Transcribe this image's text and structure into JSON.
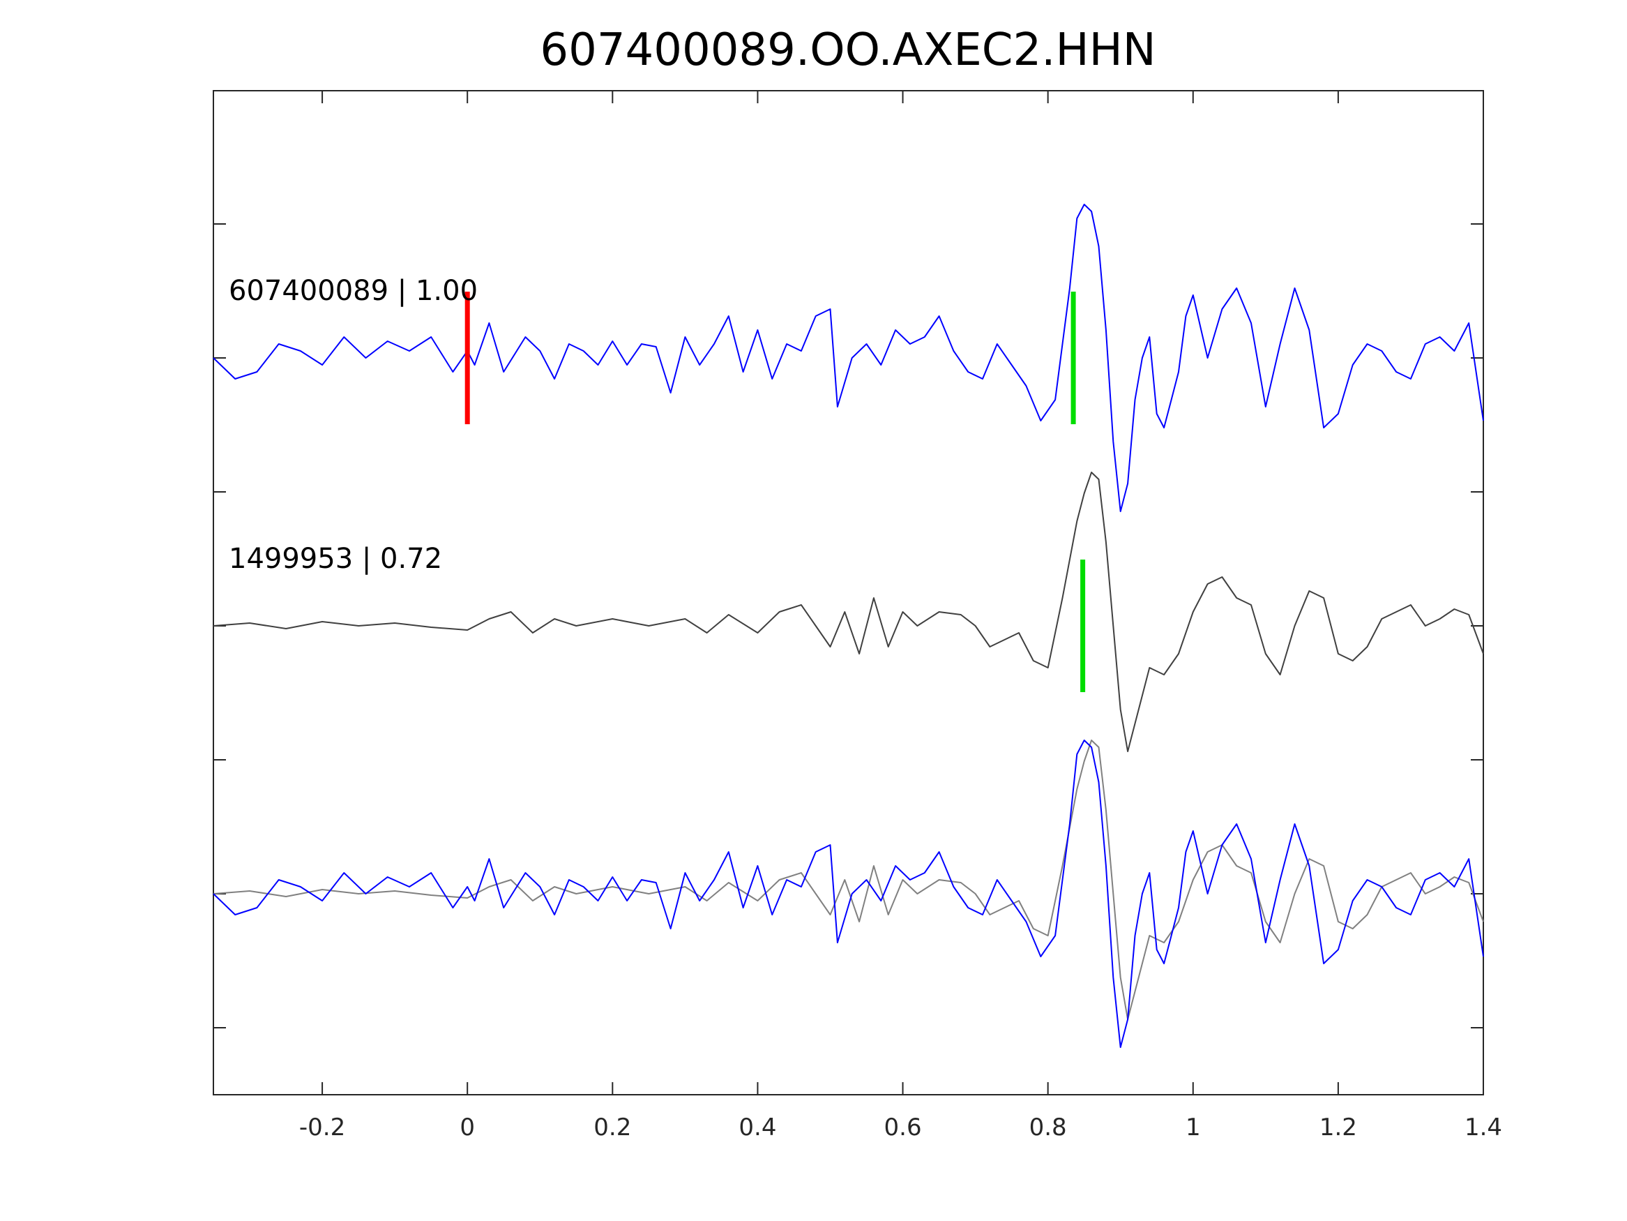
{
  "chart_data": {
    "type": "line",
    "title": "607400089.OO.AXEC2.HHN",
    "xlim": [
      -0.35,
      1.4
    ],
    "x_ticks": [
      -0.2,
      0,
      0.2,
      0.4,
      0.6,
      0.8,
      1,
      1.2,
      1.4
    ],
    "x_tick_labels": [
      "-0.2",
      "0",
      "0.2",
      "0.4",
      "0.6",
      "0.8",
      "1",
      "1.2",
      "1.4"
    ],
    "xlabel": "",
    "ylabel": "",
    "grid": false,
    "colors": {
      "template": "#0000ff",
      "detection": "#404040",
      "overlay_detection": "#808080",
      "pick_red": "#ff0000",
      "pick_green": "#00dd00",
      "axes": "#262626"
    },
    "traces": [
      {
        "label": "607400089 | 1.00",
        "event_id": "607400089",
        "correlation": "1.00",
        "color": "#0000ff",
        "picks": [
          {
            "t": 0.0,
            "color": "#ff0000"
          },
          {
            "t": 0.835,
            "color": "#00dd00"
          }
        ],
        "t": [
          -0.35,
          -0.32,
          -0.29,
          -0.26,
          -0.23,
          -0.2,
          -0.17,
          -0.14,
          -0.11,
          -0.08,
          -0.05,
          -0.02,
          0.0,
          0.01,
          0.03,
          0.05,
          0.08,
          0.1,
          0.12,
          0.14,
          0.16,
          0.18,
          0.2,
          0.22,
          0.24,
          0.26,
          0.28,
          0.3,
          0.32,
          0.34,
          0.36,
          0.38,
          0.4,
          0.42,
          0.44,
          0.46,
          0.48,
          0.5,
          0.51,
          0.53,
          0.55,
          0.57,
          0.59,
          0.61,
          0.63,
          0.65,
          0.67,
          0.69,
          0.71,
          0.73,
          0.75,
          0.77,
          0.79,
          0.81,
          0.83,
          0.84,
          0.85,
          0.86,
          0.87,
          0.88,
          0.89,
          0.9,
          0.91,
          0.92,
          0.93,
          0.94,
          0.95,
          0.96,
          0.97,
          0.98,
          0.99,
          1.0,
          1.02,
          1.04,
          1.06,
          1.08,
          1.1,
          1.12,
          1.14,
          1.16,
          1.18,
          1.2,
          1.22,
          1.24,
          1.26,
          1.28,
          1.3,
          1.32,
          1.34,
          1.36,
          1.38,
          1.4
        ],
        "y": [
          0.0,
          -0.15,
          -0.1,
          0.1,
          0.05,
          -0.05,
          0.15,
          0.0,
          0.12,
          0.05,
          0.15,
          -0.1,
          0.05,
          -0.05,
          0.25,
          -0.1,
          0.15,
          0.05,
          -0.15,
          0.1,
          0.05,
          -0.05,
          0.12,
          -0.05,
          0.1,
          0.08,
          -0.25,
          0.15,
          -0.05,
          0.1,
          0.3,
          -0.1,
          0.2,
          -0.15,
          0.1,
          0.05,
          0.3,
          0.35,
          -0.35,
          0.0,
          0.1,
          -0.05,
          0.2,
          0.1,
          0.15,
          0.3,
          0.05,
          -0.1,
          -0.15,
          0.1,
          -0.05,
          -0.2,
          -0.45,
          -0.3,
          0.5,
          1.0,
          1.1,
          1.05,
          0.8,
          0.2,
          -0.6,
          -1.1,
          -0.9,
          -0.3,
          0.0,
          0.15,
          -0.4,
          -0.5,
          -0.3,
          -0.1,
          0.3,
          0.45,
          0.0,
          0.35,
          0.5,
          0.25,
          -0.35,
          0.1,
          0.5,
          0.2,
          -0.5,
          -0.4,
          -0.05,
          0.1,
          0.05,
          -0.1,
          -0.15,
          0.1,
          0.15,
          0.05,
          0.25,
          -0.45
        ]
      },
      {
        "label": "1499953 | 0.72",
        "event_id": "1499953",
        "correlation": "0.72",
        "color": "#404040",
        "picks": [
          {
            "t": 0.848,
            "color": "#00dd00"
          }
        ],
        "t": [
          -0.35,
          -0.3,
          -0.25,
          -0.2,
          -0.15,
          -0.1,
          -0.05,
          0.0,
          0.03,
          0.06,
          0.09,
          0.12,
          0.15,
          0.2,
          0.25,
          0.3,
          0.33,
          0.36,
          0.4,
          0.43,
          0.46,
          0.48,
          0.5,
          0.52,
          0.54,
          0.56,
          0.58,
          0.6,
          0.62,
          0.65,
          0.68,
          0.7,
          0.72,
          0.74,
          0.76,
          0.78,
          0.8,
          0.82,
          0.84,
          0.85,
          0.86,
          0.87,
          0.88,
          0.89,
          0.9,
          0.91,
          0.92,
          0.94,
          0.96,
          0.98,
          1.0,
          1.02,
          1.04,
          1.06,
          1.08,
          1.1,
          1.12,
          1.14,
          1.16,
          1.18,
          1.2,
          1.22,
          1.24,
          1.26,
          1.28,
          1.3,
          1.32,
          1.34,
          1.36,
          1.38,
          1.4
        ],
        "y": [
          0.0,
          0.02,
          -0.02,
          0.03,
          0.0,
          0.02,
          -0.01,
          -0.03,
          0.05,
          0.1,
          -0.05,
          0.05,
          0.0,
          0.05,
          0.0,
          0.05,
          -0.05,
          0.08,
          -0.05,
          0.1,
          0.15,
          0.0,
          -0.15,
          0.1,
          -0.2,
          0.2,
          -0.15,
          0.1,
          0.0,
          0.1,
          0.08,
          0.0,
          -0.15,
          -0.1,
          -0.05,
          -0.25,
          -0.3,
          0.2,
          0.75,
          0.95,
          1.1,
          1.05,
          0.6,
          0.0,
          -0.6,
          -0.9,
          -0.7,
          -0.3,
          -0.35,
          -0.2,
          0.1,
          0.3,
          0.35,
          0.2,
          0.15,
          -0.2,
          -0.35,
          0.0,
          0.25,
          0.2,
          -0.2,
          -0.25,
          -0.15,
          0.05,
          0.1,
          0.15,
          0.0,
          0.05,
          0.12,
          0.08,
          -0.2
        ]
      }
    ]
  }
}
